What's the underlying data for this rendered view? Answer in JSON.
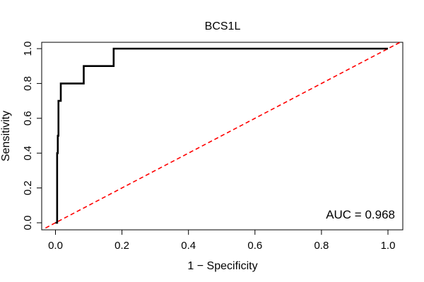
{
  "chart_data": {
    "type": "line",
    "title": "BCS1L",
    "xlabel": "1 − Specificity",
    "ylabel": "Sensitivity",
    "xlim": [
      0,
      1
    ],
    "ylim": [
      0,
      1
    ],
    "xticks": [
      0.0,
      0.2,
      0.4,
      0.6,
      0.8,
      1.0
    ],
    "yticks": [
      0.0,
      0.2,
      0.4,
      0.6,
      0.8,
      1.0
    ],
    "xtick_labels": [
      "0.0",
      "0.2",
      "0.4",
      "0.6",
      "0.8",
      "1.0"
    ],
    "ytick_labels": [
      "0.0",
      "0.2",
      "0.4",
      "0.6",
      "0.8",
      "1.0"
    ],
    "series": [
      {
        "name": "ROC curve",
        "color": "#000000",
        "style": "solid-step",
        "x": [
          0.0,
          0.005,
          0.005,
          0.007,
          0.007,
          0.009,
          0.009,
          0.016,
          0.016,
          0.085,
          0.085,
          0.175,
          0.175,
          1.0
        ],
        "y": [
          0.0,
          0.0,
          0.4,
          0.4,
          0.5,
          0.5,
          0.7,
          0.7,
          0.8,
          0.8,
          0.9,
          0.9,
          1.0,
          1.0
        ]
      },
      {
        "name": "Reference diagonal",
        "color": "#ff0000",
        "style": "dashed",
        "x": [
          -0.03,
          1.035
        ],
        "y": [
          -0.03,
          1.035
        ]
      }
    ],
    "annotation": "AUC = 0.968"
  }
}
